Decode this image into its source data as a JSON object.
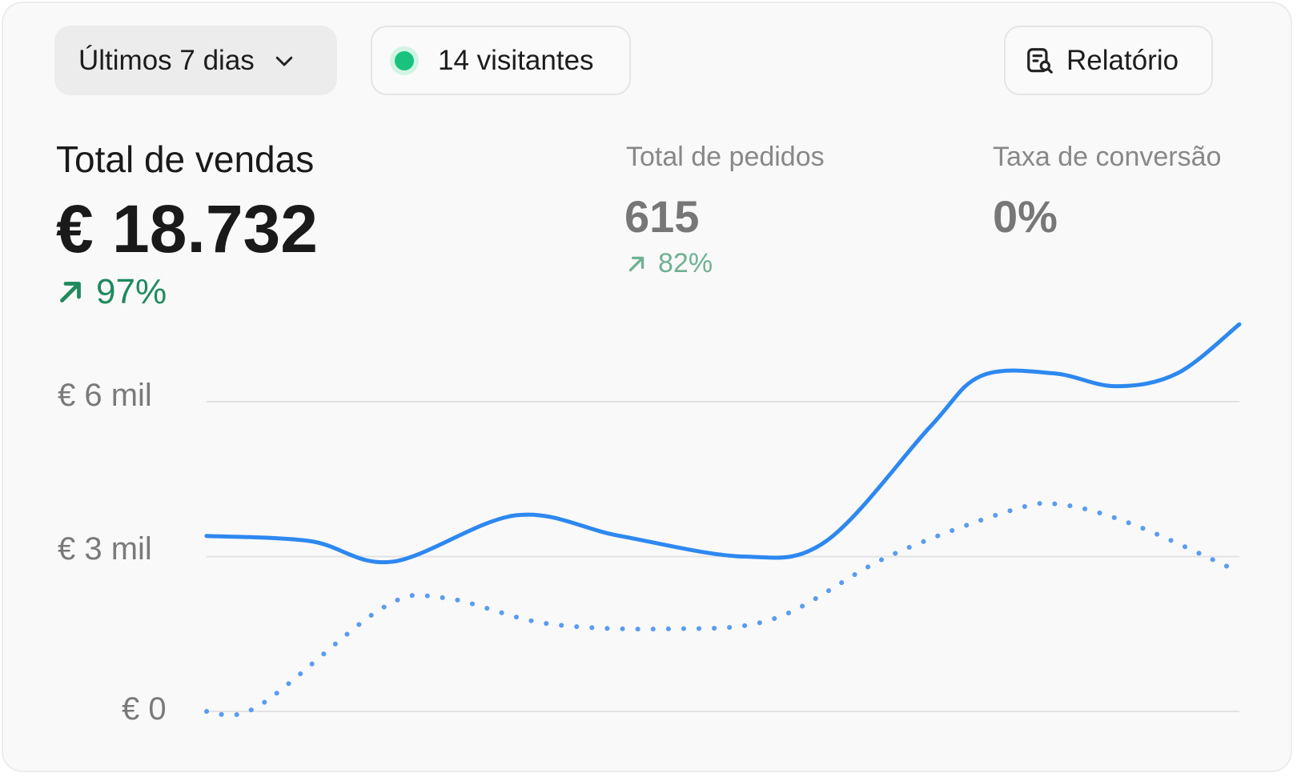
{
  "toolbar": {
    "range_label": "Últimos 7 dias",
    "visitors_label": "14 visitantes",
    "report_label": "Relatório",
    "status_color": "#19c37d"
  },
  "metrics": {
    "sales": {
      "label": "Total de vendas",
      "value": "€ 18.732",
      "trend": "97%",
      "trend_direction": "up"
    },
    "orders": {
      "label": "Total de pedidos",
      "value": "615",
      "trend": "82%",
      "trend_direction": "up"
    },
    "conversion": {
      "label": "Taxa de conversão",
      "value": "0%"
    }
  },
  "chart_data": {
    "type": "line",
    "y_ticks": [
      "€ 0",
      "€ 3 mil",
      "€ 6 mil"
    ],
    "y_tick_values": [
      0,
      3000,
      6000
    ],
    "ylim": [
      0,
      7500
    ],
    "grid": true,
    "series": [
      {
        "style": "solid",
        "color": "#2d88f0",
        "x": [
          0,
          0.1,
          0.18,
          0.3,
          0.4,
          0.52,
          0.6,
          0.7,
          0.75,
          0.82,
          0.88,
          0.94,
          1.0
        ],
        "values": [
          3400,
          3300,
          2900,
          3800,
          3400,
          3000,
          3300,
          5500,
          6500,
          6550,
          6300,
          6550,
          7500
        ]
      },
      {
        "style": "dotted",
        "color": "#5a9cf0",
        "x": [
          0,
          0.05,
          0.17,
          0.23,
          0.33,
          0.45,
          0.55,
          0.66,
          0.78,
          0.83,
          0.9,
          1.0
        ],
        "values": [
          0,
          100,
          2000,
          2200,
          1700,
          1600,
          1800,
          3000,
          3900,
          4000,
          3600,
          2700
        ]
      }
    ]
  }
}
